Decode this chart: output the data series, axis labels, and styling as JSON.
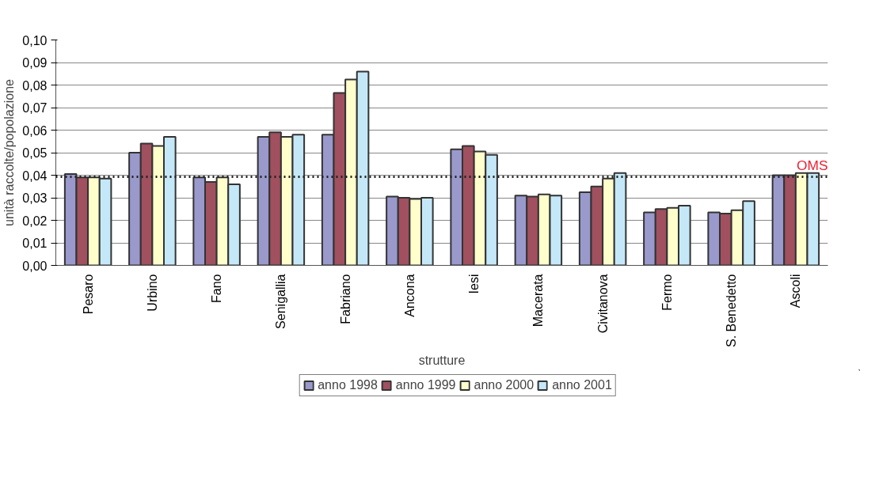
{
  "chart_data": {
    "type": "bar",
    "xlabel": "strutture",
    "ylabel": "unità raccolte/popolazione",
    "categories": [
      "Pesaro",
      "Urbino",
      "Fano",
      "Senigallia",
      "Fabriano",
      "Ancona",
      "Iesi",
      "Macerata",
      "Civitanova",
      "Fermo",
      "S. Benedetto",
      "Ascoli"
    ],
    "series": [
      {
        "name": "anno 1998",
        "color": "#9999cc",
        "values": [
          0.0405,
          0.05,
          0.039,
          0.057,
          0.058,
          0.0305,
          0.0515,
          0.031,
          0.0325,
          0.0235,
          0.0235,
          0.04
        ]
      },
      {
        "name": "anno 1999",
        "color": "#a0505f",
        "values": [
          0.039,
          0.054,
          0.037,
          0.059,
          0.0765,
          0.03,
          0.053,
          0.0305,
          0.035,
          0.025,
          0.023,
          0.04
        ]
      },
      {
        "name": "anno 2000",
        "color": "#ffffcc",
        "values": [
          0.039,
          0.053,
          0.039,
          0.057,
          0.0825,
          0.0295,
          0.0505,
          0.0315,
          0.0385,
          0.0255,
          0.0245,
          0.041
        ]
      },
      {
        "name": "anno 2001",
        "color": "#c5e8f8",
        "values": [
          0.0385,
          0.057,
          0.036,
          0.058,
          0.086,
          0.03,
          0.049,
          0.031,
          0.041,
          0.0265,
          0.0285,
          0.041
        ]
      }
    ],
    "ylim": [
      0,
      0.1
    ],
    "yticks": [
      {
        "value": 0,
        "label": "0,00"
      },
      {
        "value": 0.01,
        "label": "0,01"
      },
      {
        "value": 0.02,
        "label": "0,02"
      },
      {
        "value": 0.03,
        "label": "0,03"
      },
      {
        "value": 0.04,
        "label": "0,04"
      },
      {
        "value": 0.05,
        "label": "0,05"
      },
      {
        "value": 0.06,
        "label": "0,06"
      },
      {
        "value": 0.07,
        "label": "0,07"
      },
      {
        "value": 0.08,
        "label": "0,08"
      },
      {
        "value": 0.09,
        "label": "0,09"
      },
      {
        "value": 0.1,
        "label": "0,10"
      }
    ],
    "ref_lines": [
      {
        "axis": "y",
        "value": 0.0393,
        "label": "OMS",
        "color": "#222222",
        "line_style": "dotted"
      }
    ],
    "grid": "y",
    "legend": "bottom"
  }
}
